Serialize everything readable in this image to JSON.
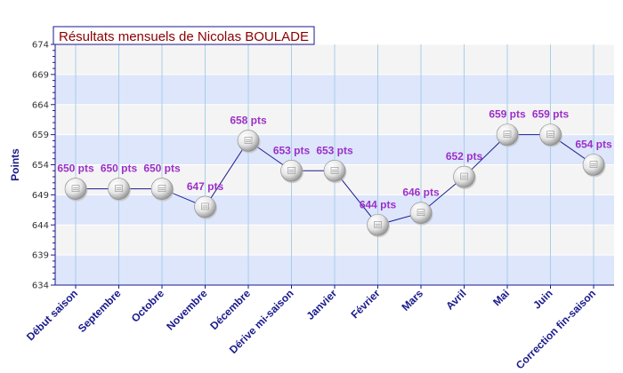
{
  "chart_data": {
    "type": "line",
    "title": "Résultats mensuels de Nicolas BOULADE",
    "ylabel": "Points",
    "xlabel": "",
    "ylim": [
      634,
      674
    ],
    "yticks": [
      634,
      639,
      644,
      649,
      654,
      659,
      664,
      669,
      674
    ],
    "categories": [
      "Début saison",
      "Septembre",
      "Octobre",
      "Novembre",
      "Décembre",
      "Dérive mi-saison",
      "Janvier",
      "Février",
      "Mars",
      "Avril",
      "Mai",
      "Juin",
      "Correction fin-saison"
    ],
    "values": [
      650,
      650,
      650,
      647,
      658,
      653,
      653,
      644,
      646,
      652,
      659,
      659,
      654
    ],
    "labels": [
      "650 pts",
      "650 pts",
      "650 pts",
      "647 pts",
      "658 pts",
      "653 pts",
      "653 pts",
      "644 pts",
      "646 pts",
      "652 pts",
      "659 pts",
      "659 pts",
      "654 pts"
    ],
    "grid": true,
    "legend": "none",
    "colors": {
      "band": "#dde6fb",
      "band_alt": "#f4f4f4",
      "line": "#1a1a8c",
      "label": "#9b30c8",
      "title": "#8b0000",
      "axis": "#1a1a8c"
    },
    "marker_icon": "ping-pong-ball-icon"
  }
}
